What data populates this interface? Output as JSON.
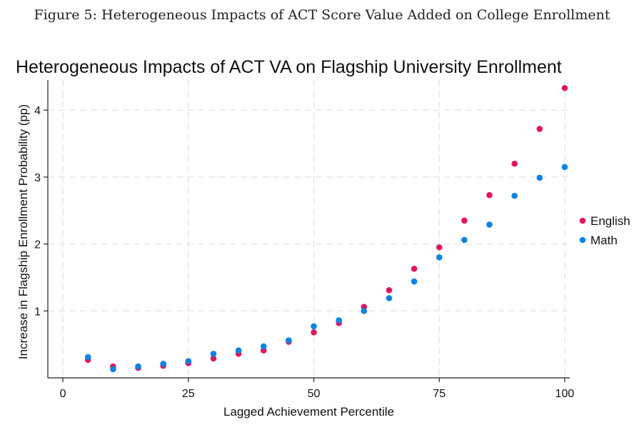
{
  "caption": "Figure 5: Heterogeneous Impacts of ACT Score Value Added on College Enrollment",
  "chart_data": {
    "type": "scatter",
    "title": "Heterogeneous Impacts of ACT VA on Flagship University Enrollment",
    "xlabel": "Lagged Achievement Percentile",
    "ylabel": "Increase in Flagship Enrollment Probability (pp)",
    "xlim": [
      -3,
      101
    ],
    "ylim": [
      0,
      4.45
    ],
    "xticks": [
      0,
      25,
      50,
      75,
      100
    ],
    "yticks": [
      1,
      2,
      3,
      4
    ],
    "grid": true,
    "legend_position": "right",
    "x": [
      5,
      10,
      15,
      20,
      25,
      30,
      35,
      40,
      45,
      50,
      55,
      60,
      65,
      70,
      75,
      80,
      85,
      90,
      95,
      100
    ],
    "series": [
      {
        "name": "English",
        "color": "#e3165b",
        "values": [
          0.27,
          0.17,
          0.15,
          0.18,
          0.22,
          0.29,
          0.36,
          0.41,
          0.54,
          0.68,
          0.82,
          1.06,
          1.31,
          1.63,
          1.95,
          2.35,
          2.73,
          3.2,
          3.72,
          4.33
        ]
      },
      {
        "name": "Math",
        "color": "#0a83e4",
        "values": [
          0.31,
          0.13,
          0.17,
          0.21,
          0.25,
          0.36,
          0.41,
          0.47,
          0.56,
          0.77,
          0.86,
          1.0,
          1.19,
          1.44,
          1.8,
          2.06,
          2.29,
          2.72,
          2.99,
          3.15
        ]
      }
    ]
  }
}
